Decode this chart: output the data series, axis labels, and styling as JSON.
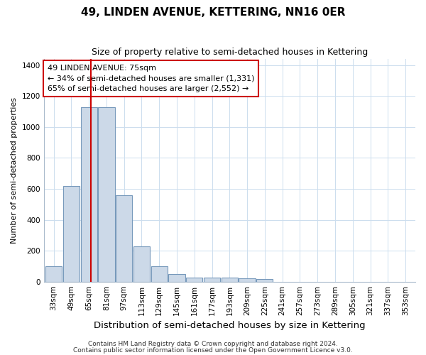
{
  "title": "49, LINDEN AVENUE, KETTERING, NN16 0ER",
  "subtitle": "Size of property relative to semi-detached houses in Kettering",
  "xlabel": "Distribution of semi-detached houses by size in Kettering",
  "ylabel": "Number of semi-detached properties",
  "footer1": "Contains HM Land Registry data © Crown copyright and database right 2024.",
  "footer2": "Contains public sector information licensed under the Open Government Licence v3.0.",
  "annotation_title": "49 LINDEN AVENUE: 75sqm",
  "annotation_line1": "← 34% of semi-detached houses are smaller (1,331)",
  "annotation_line2": "65% of semi-detached houses are larger (2,552) →",
  "bar_color": "#ccd9e8",
  "bar_edge_color": "#7799bb",
  "red_line_color": "#cc0000",
  "red_line_x": 75,
  "bins": [
    33,
    49,
    65,
    81,
    97,
    113,
    129,
    145,
    161,
    177,
    193,
    209,
    225,
    241,
    257,
    273,
    289,
    305,
    321,
    337,
    353
  ],
  "counts": [
    100,
    620,
    1130,
    1130,
    560,
    230,
    100,
    50,
    25,
    25,
    25,
    20,
    15,
    0,
    0,
    0,
    0,
    0,
    0,
    0
  ],
  "bin_width": 16,
  "ylim": [
    0,
    1440
  ],
  "yticks": [
    0,
    200,
    400,
    600,
    800,
    1000,
    1200,
    1400
  ],
  "background_color": "#ffffff",
  "plot_bg_color": "#ffffff",
  "grid_color": "#ccddee",
  "annotation_box_color": "#ffffff",
  "annotation_box_edge": "#cc0000",
  "title_fontsize": 11,
  "subtitle_fontsize": 9,
  "xlabel_fontsize": 9.5,
  "ylabel_fontsize": 8,
  "tick_fontsize": 7.5,
  "annotation_fontsize": 8,
  "footer_fontsize": 6.5
}
